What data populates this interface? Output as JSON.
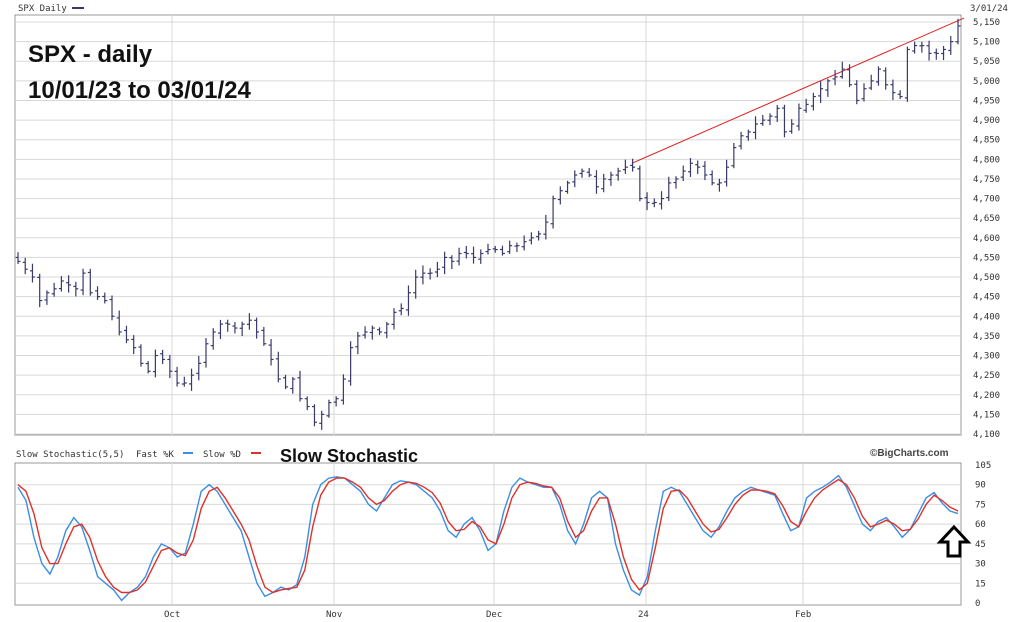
{
  "header": {
    "symbol_label": "SPX Daily",
    "date_label": "3/01/24"
  },
  "annotations": {
    "title_line1": "SPX - daily",
    "title_line2": "10/01/23 to 03/01/24",
    "stochastic_title": "Slow Stochastic"
  },
  "lower_panel": {
    "indicator_label": "Slow Stochastic(5,5)",
    "fast_label": "Fast %K",
    "slow_label": "Slow %D",
    "credit": "©BigCharts.com"
  },
  "colors": {
    "price_bars": "#3a3a6a",
    "trendline": "#e02020",
    "fast_k": "#3a8ee6",
    "slow_d": "#e0302a",
    "grid": "#d8d8d8",
    "arrow": "#000000"
  },
  "chart_data": [
    {
      "type": "ohlc",
      "title": "SPX - daily",
      "subtitle": "10/01/23 to 03/01/24",
      "x_tick_labels": [
        "Oct",
        "Nov",
        "Dec",
        "24",
        "Feb"
      ],
      "y_tick_labels": [
        "5,150",
        "5,100",
        "5,050",
        "5,000",
        "4,950",
        "4,900",
        "4,850",
        "4,800",
        "4,750",
        "4,700",
        "4,650",
        "4,600",
        "4,550",
        "4,500",
        "4,450",
        "4,400",
        "4,350",
        "4,300",
        "4,250",
        "4,200",
        "4,150",
        "4,100"
      ],
      "ylim": [
        4100,
        5150
      ],
      "grid": true,
      "approx_closes": [
        4540,
        4520,
        4500,
        4440,
        4460,
        4470,
        4490,
        4480,
        4470,
        4510,
        4460,
        4450,
        4440,
        4400,
        4360,
        4340,
        4320,
        4280,
        4260,
        4300,
        4290,
        4260,
        4230,
        4230,
        4250,
        4280,
        4330,
        4360,
        4380,
        4380,
        4370,
        4380,
        4390,
        4360,
        4330,
        4290,
        4240,
        4220,
        4240,
        4190,
        4170,
        4130,
        4150,
        4180,
        4190,
        4240,
        4320,
        4350,
        4360,
        4370,
        4360,
        4380,
        4410,
        4420,
        4460,
        4500,
        4510,
        4510,
        4520,
        4550,
        4540,
        4560,
        4560,
        4550,
        4560,
        4570,
        4570,
        4560,
        4580,
        4580,
        4590,
        4600,
        4610,
        4640,
        4700,
        4720,
        4740,
        4760,
        4770,
        4760,
        4730,
        4750,
        4760,
        4770,
        4780,
        4780,
        4700,
        4690,
        4690,
        4700,
        4740,
        4750,
        4770,
        4790,
        4780,
        4760,
        4740,
        4740,
        4780,
        4830,
        4860,
        4870,
        4890,
        4900,
        4910,
        4930,
        4870,
        4890,
        4930,
        4940,
        4960,
        4980,
        5000,
        5010,
        5030,
        4990,
        4950,
        4980,
        5000,
        5030,
        4990,
        4970,
        4960,
        5080,
        5090,
        5090,
        5070,
        5070,
        5080,
        5100,
        5140
      ],
      "trendline": {
        "from_value": 4790,
        "to_value": 5160
      }
    },
    {
      "type": "line",
      "title": "Slow Stochastic",
      "ylim": [
        0,
        105
      ],
      "y_tick_labels": [
        "105",
        "90",
        "75",
        "60",
        "45",
        "30",
        "15",
        "0"
      ],
      "x_tick_labels": [
        "Oct",
        "Nov",
        "Dec",
        "24",
        "Feb"
      ],
      "series": [
        {
          "name": "Fast %K",
          "values": [
            88,
            78,
            50,
            30,
            22,
            35,
            55,
            65,
            58,
            40,
            20,
            15,
            10,
            2,
            8,
            12,
            20,
            35,
            45,
            42,
            35,
            38,
            60,
            85,
            90,
            85,
            75,
            65,
            55,
            35,
            15,
            5,
            8,
            12,
            10,
            14,
            35,
            75,
            90,
            95,
            96,
            95,
            90,
            85,
            75,
            70,
            80,
            90,
            93,
            92,
            90,
            85,
            80,
            70,
            55,
            50,
            60,
            65,
            55,
            40,
            45,
            70,
            88,
            95,
            92,
            90,
            88,
            88,
            75,
            55,
            45,
            60,
            80,
            85,
            80,
            45,
            25,
            10,
            6,
            20,
            55,
            85,
            88,
            85,
            75,
            65,
            55,
            50,
            58,
            70,
            80,
            85,
            88,
            86,
            84,
            82,
            68,
            55,
            58,
            80,
            85,
            88,
            92,
            97,
            88,
            74,
            60,
            55,
            62,
            65,
            58,
            50,
            56,
            68,
            80,
            84,
            76,
            70,
            68
          ]
        },
        {
          "name": "Slow %D",
          "values": [
            90,
            85,
            68,
            42,
            30,
            30,
            45,
            58,
            60,
            50,
            32,
            20,
            12,
            8,
            8,
            10,
            16,
            28,
            40,
            42,
            38,
            36,
            48,
            72,
            85,
            88,
            80,
            70,
            60,
            48,
            28,
            12,
            8,
            10,
            11,
            12,
            25,
            58,
            82,
            92,
            95,
            95,
            92,
            88,
            80,
            75,
            78,
            85,
            90,
            92,
            91,
            88,
            84,
            76,
            62,
            55,
            56,
            62,
            58,
            48,
            45,
            60,
            80,
            90,
            92,
            91,
            89,
            88,
            80,
            62,
            50,
            55,
            70,
            80,
            80,
            60,
            35,
            18,
            10,
            15,
            42,
            72,
            85,
            86,
            80,
            70,
            60,
            54,
            56,
            65,
            75,
            82,
            86,
            86,
            85,
            83,
            74,
            62,
            58,
            70,
            80,
            86,
            90,
            94,
            90,
            80,
            66,
            58,
            60,
            63,
            60,
            55,
            56,
            64,
            75,
            82,
            78,
            73,
            70
          ]
        }
      ]
    }
  ]
}
